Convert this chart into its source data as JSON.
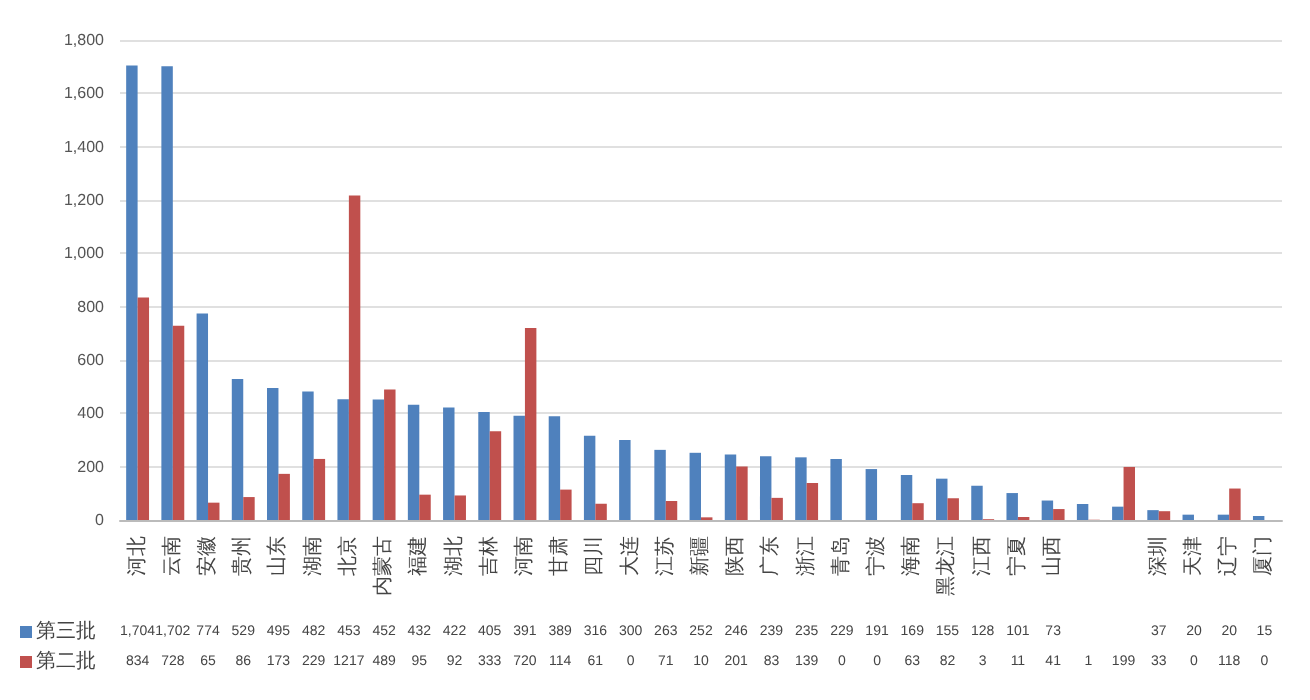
{
  "chart_data": {
    "type": "bar",
    "categories": [
      "河北",
      "云南",
      "安徽",
      "贵州",
      "山东",
      "湖南",
      "北京",
      "内蒙古",
      "福建",
      "湖北",
      "吉林",
      "河南",
      "甘肃",
      "四川",
      "大连",
      "江苏",
      "新疆",
      "陕西",
      "广东",
      "浙江",
      "青岛",
      "宁波",
      "海南",
      "黑龙江",
      "江西",
      "宁夏",
      "山西",
      null,
      null,
      "深圳",
      "天津",
      "辽宁",
      "厦门"
    ],
    "series": [
      {
        "name": "第三批",
        "color": "#4f81bd",
        "values": [
          1704,
          1702,
          774,
          529,
          495,
          482,
          453,
          452,
          432,
          422,
          405,
          391,
          389,
          316,
          300,
          263,
          252,
          246,
          239,
          235,
          229,
          191,
          169,
          155,
          128,
          101,
          73,
          60,
          50,
          37,
          20,
          20,
          15
        ],
        "value_labels": [
          "1,704",
          "1,702",
          "774",
          "529",
          "495",
          "482",
          "453",
          "452",
          "432",
          "422",
          "405",
          "391",
          "389",
          "316",
          "300",
          "263",
          "252",
          "246",
          "239",
          "235",
          "229",
          "191",
          "169",
          "155",
          "128",
          "101",
          "73",
          null,
          null,
          "37",
          "20",
          "20",
          "15"
        ]
      },
      {
        "name": "第二批",
        "color": "#c0504d",
        "values": [
          834,
          728,
          65,
          86,
          173,
          229,
          1217,
          489,
          95,
          92,
          333,
          720,
          114,
          61,
          0,
          71,
          10,
          201,
          83,
          139,
          0,
          0,
          63,
          82,
          3,
          11,
          41,
          1,
          199,
          33,
          0,
          118,
          0
        ],
        "value_labels": [
          "834",
          "728",
          "65",
          "86",
          "173",
          "229",
          "1217",
          "489",
          "95",
          "92",
          "333",
          "720",
          "114",
          "61",
          "0",
          "71",
          "10",
          "201",
          "83",
          "139",
          "0",
          "0",
          "63",
          "82",
          "3",
          "11",
          "41",
          "1",
          "199",
          "33",
          "0",
          "118",
          "0"
        ]
      }
    ],
    "ylim": [
      0,
      1800
    ],
    "yticks": [
      0,
      200,
      400,
      600,
      800,
      {
        "value": 1000,
        "label": "1,000"
      },
      {
        "value": 1200,
        "label": "1,200"
      },
      {
        "value": 1400,
        "label": "1,400"
      },
      {
        "value": 1600,
        "label": "1,600"
      },
      {
        "value": 1800,
        "label": "1,800"
      }
    ],
    "grid": "y",
    "legend": "bottom"
  }
}
